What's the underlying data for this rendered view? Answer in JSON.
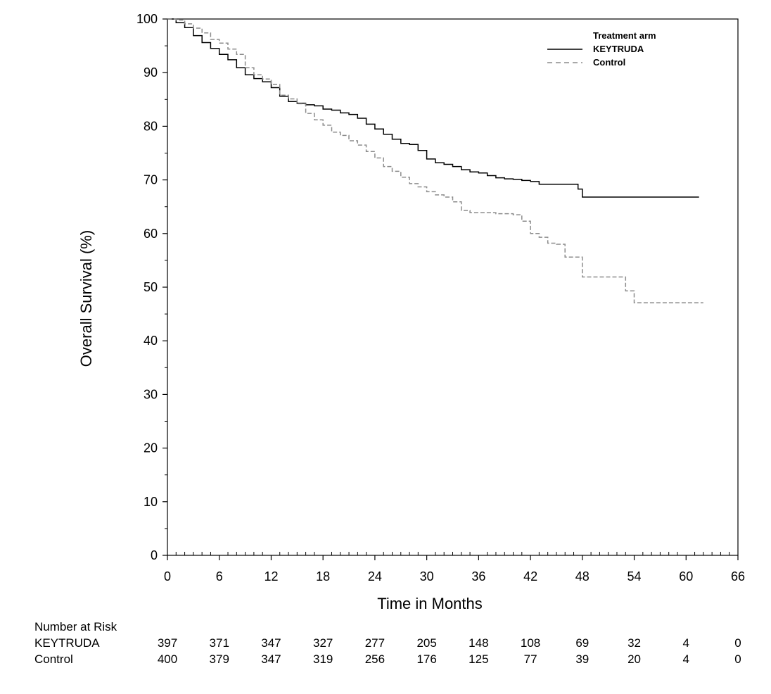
{
  "chart_data": {
    "type": "line",
    "subtype": "kaplan-meier",
    "title": "",
    "xlabel": "Time in Months",
    "ylabel": "Overall Survival (%)",
    "xlim": [
      0,
      66
    ],
    "ylim": [
      0,
      100
    ],
    "x_ticks": [
      0,
      6,
      12,
      18,
      24,
      30,
      36,
      42,
      48,
      54,
      60,
      66
    ],
    "y_ticks": [
      0,
      10,
      20,
      30,
      40,
      50,
      60,
      70,
      80,
      90,
      100
    ],
    "grid": false,
    "legend": {
      "title": "Treatment arm",
      "placement": "top-right"
    },
    "series": [
      {
        "name": "KEYTRUDA",
        "style": "solid",
        "color": "#000000",
        "x": [
          0,
          1,
          2,
          3,
          4,
          5,
          6,
          7,
          8,
          9,
          10,
          11,
          12,
          13,
          14,
          15,
          16,
          17,
          18,
          19,
          20,
          21,
          22,
          23,
          24,
          25,
          26,
          27,
          28,
          29,
          30,
          31,
          32,
          33,
          34,
          35,
          36,
          37,
          38,
          39,
          40,
          41,
          42,
          43,
          44,
          45,
          46,
          47,
          47.5,
          48,
          50,
          52,
          54,
          56,
          58,
          60,
          61.5
        ],
        "y": [
          100,
          99.3,
          98.4,
          96.9,
          95.6,
          94.5,
          93.4,
          92.4,
          90.9,
          89.6,
          88.9,
          88.3,
          87.2,
          85.6,
          84.6,
          84.3,
          84.0,
          83.8,
          83.2,
          83.0,
          82.5,
          82.2,
          81.5,
          80.4,
          79.5,
          78.5,
          77.6,
          76.8,
          76.6,
          75.5,
          73.9,
          73.2,
          72.9,
          72.5,
          71.9,
          71.5,
          71.3,
          70.8,
          70.4,
          70.2,
          70.1,
          69.9,
          69.7,
          69.2,
          69.2,
          69.2,
          69.2,
          69.2,
          68.3,
          66.8,
          66.8,
          66.8,
          66.8,
          66.8,
          66.8,
          66.8,
          66.8
        ]
      },
      {
        "name": "Control",
        "style": "dashed",
        "color": "#8c8c8c",
        "x": [
          0,
          1,
          2,
          3,
          4,
          5,
          6,
          7,
          8,
          9,
          10,
          11,
          12,
          13,
          14,
          15,
          16,
          17,
          18,
          19,
          20,
          21,
          22,
          23,
          24,
          25,
          26,
          27,
          28,
          29,
          30,
          31,
          32,
          33,
          34,
          35,
          36,
          37,
          38,
          39,
          40,
          41,
          42,
          43,
          44,
          45,
          46,
          47,
          48,
          49,
          50,
          51,
          52,
          53,
          54,
          56,
          58,
          60,
          62
        ],
        "y": [
          100,
          99.8,
          99.1,
          98.3,
          97.4,
          96.2,
          95.5,
          94.4,
          93.4,
          90.9,
          89.6,
          88.8,
          87.8,
          85.8,
          85.1,
          84.2,
          82.4,
          81.2,
          80.2,
          78.9,
          78.3,
          77.3,
          76.5,
          75.3,
          74.1,
          72.5,
          71.6,
          70.5,
          69.3,
          68.7,
          67.8,
          67.2,
          66.8,
          65.9,
          64.3,
          63.9,
          63.9,
          63.9,
          63.7,
          63.7,
          63.5,
          62.3,
          60.0,
          59.3,
          58.2,
          58.0,
          55.6,
          55.6,
          51.9,
          51.9,
          51.9,
          51.9,
          51.9,
          49.3,
          47.1,
          47.1,
          47.1,
          47.1,
          47.1
        ]
      }
    ],
    "number_at_risk": {
      "title": "Number at Risk",
      "times": [
        0,
        6,
        12,
        18,
        24,
        30,
        36,
        42,
        48,
        54,
        60,
        66
      ],
      "arms": [
        {
          "label": "KEYTRUDA",
          "counts": [
            397,
            371,
            347,
            327,
            277,
            205,
            148,
            108,
            69,
            32,
            4,
            0
          ]
        },
        {
          "label": "Control",
          "counts": [
            400,
            379,
            347,
            319,
            256,
            176,
            125,
            77,
            39,
            20,
            4,
            0
          ]
        }
      ]
    }
  }
}
